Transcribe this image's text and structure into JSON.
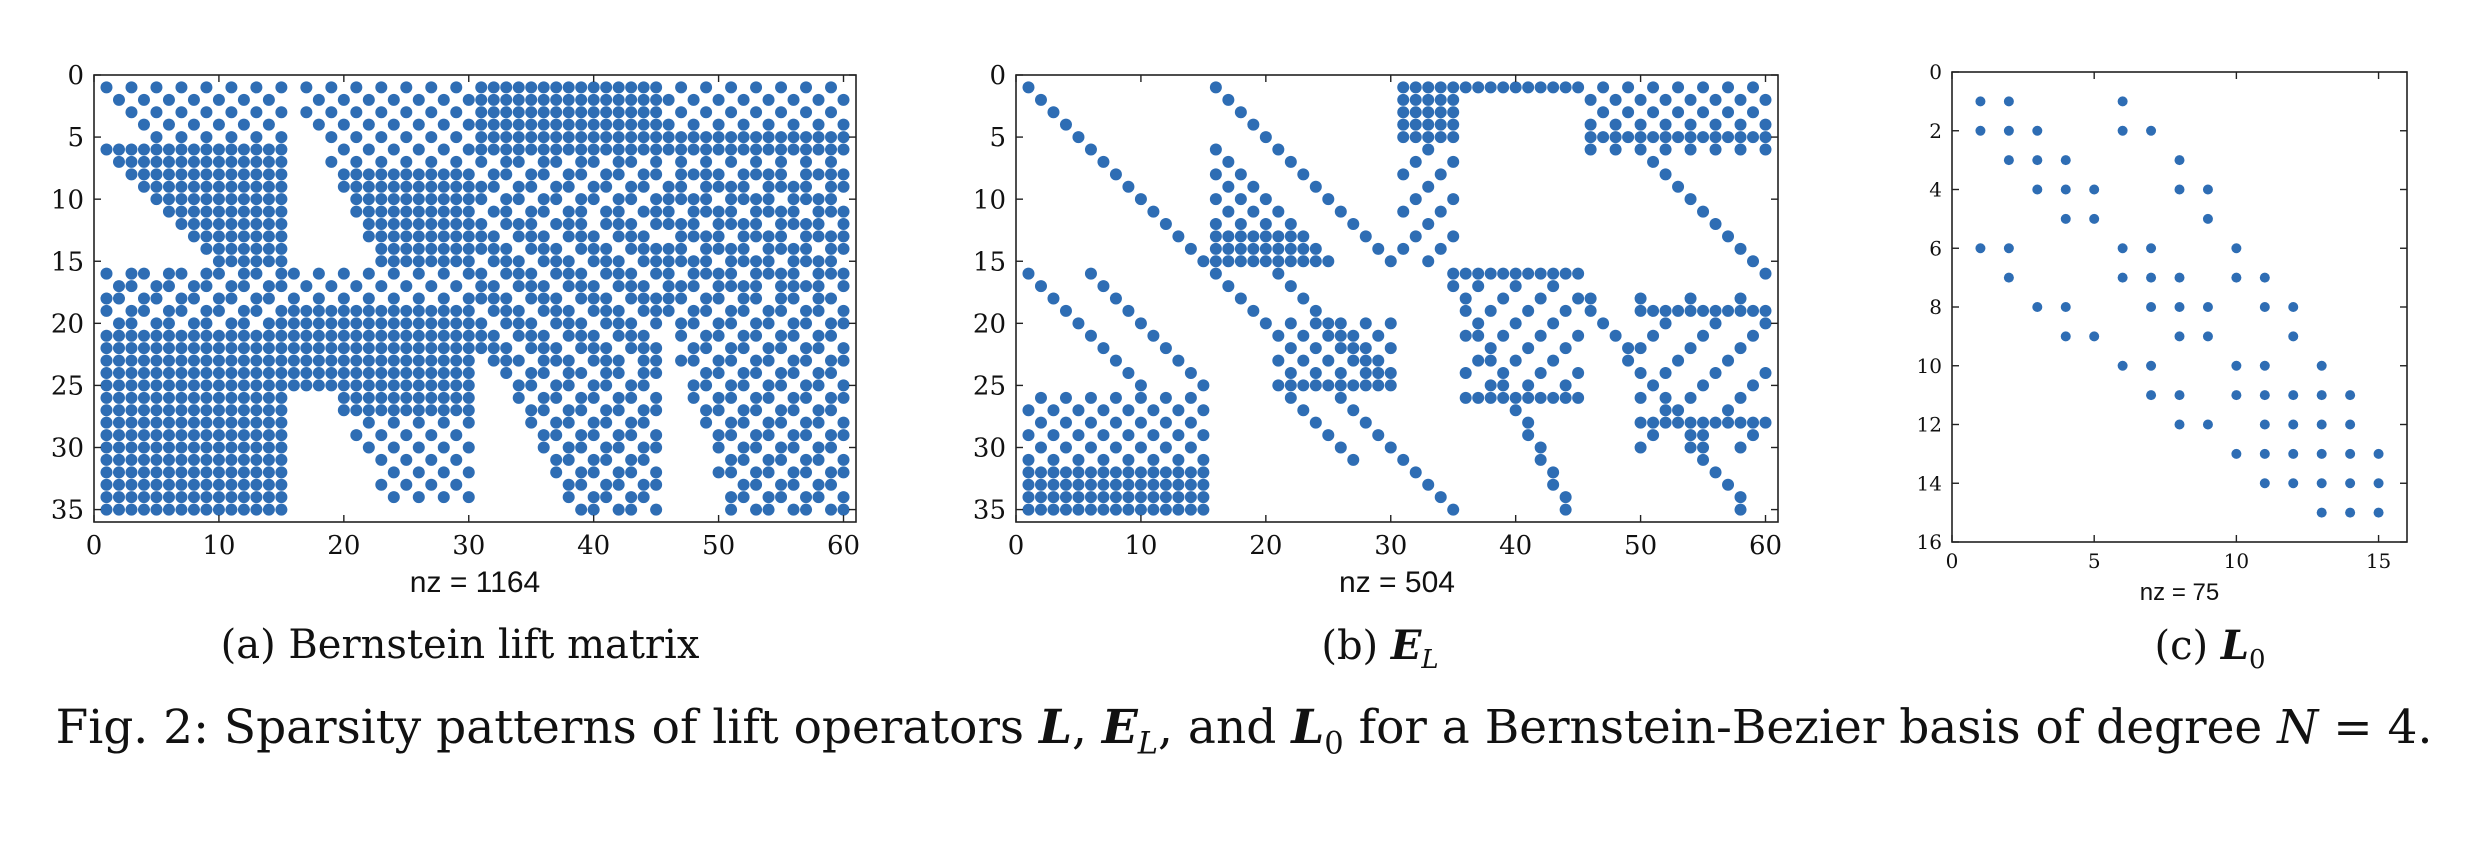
{
  "figure": {
    "caption": {
      "prefix": "Fig. 2: Sparsity patterns of lift operators ",
      "sym1": "L",
      "sep1": ", ",
      "sym2": "E",
      "sym2_sub": "L",
      "sep2": ", and ",
      "sym3": "L",
      "sym3_sub": "0",
      "middle": " for a Bernstein-Bezier basis of degree ",
      "eq_var": "N",
      "eq_rest": " = 4."
    }
  },
  "colors": {
    "marker": "#2e6db4",
    "axis": "#222222",
    "text": "#111111"
  },
  "chart_data": [
    {
      "type": "scatter",
      "subcaption": "(a) Bernstein lift matrix",
      "subcaption_prefix": "(a) ",
      "subcaption_text": "Bernstein lift matrix",
      "xlabel": "nz = 1164",
      "xlim": [
        0,
        61
      ],
      "ylim": [
        0,
        36
      ],
      "y_reversed": true,
      "xticks": [
        0,
        10,
        20,
        30,
        40,
        50,
        60
      ],
      "yticks": [
        0,
        5,
        10,
        15,
        20,
        25,
        30,
        35
      ],
      "grid": false,
      "nz": 1164,
      "pattern": "Bernstein lift matrix sparsity"
    },
    {
      "type": "scatter",
      "subcaption_prefix": "(b) ",
      "subcaption_sym": "E",
      "subcaption_sub": "L",
      "xlabel": "nz = 504",
      "xlim": [
        0,
        61
      ],
      "ylim": [
        0,
        36
      ],
      "y_reversed": true,
      "xticks": [
        0,
        10,
        20,
        30,
        40,
        50,
        60
      ],
      "yticks": [
        0,
        5,
        10,
        15,
        20,
        25,
        30,
        35
      ],
      "grid": false,
      "nz": 504,
      "pattern": "E_L sparsity"
    },
    {
      "type": "scatter",
      "subcaption_prefix": "(c) ",
      "subcaption_sym": "L",
      "subcaption_sub": "0",
      "xlabel": "nz = 75",
      "xlim": [
        0,
        16
      ],
      "ylim": [
        0,
        16
      ],
      "y_reversed": true,
      "xticks": [
        0,
        5,
        10,
        15
      ],
      "yticks": [
        0,
        2,
        4,
        6,
        8,
        10,
        12,
        14,
        16
      ],
      "grid": false,
      "nz": 75,
      "points": [
        [
          1,
          1
        ],
        [
          2,
          1
        ],
        [
          6,
          1
        ],
        [
          1,
          2
        ],
        [
          2,
          2
        ],
        [
          3,
          2
        ],
        [
          6,
          2
        ],
        [
          7,
          2
        ],
        [
          2,
          3
        ],
        [
          3,
          3
        ],
        [
          4,
          3
        ],
        [
          8,
          3
        ],
        [
          3,
          4
        ],
        [
          4,
          4
        ],
        [
          5,
          4
        ],
        [
          8,
          4
        ],
        [
          9,
          4
        ],
        [
          4,
          5
        ],
        [
          5,
          5
        ],
        [
          9,
          5
        ],
        [
          1,
          6
        ],
        [
          2,
          6
        ],
        [
          6,
          6
        ],
        [
          7,
          6
        ],
        [
          10,
          6
        ],
        [
          2,
          7
        ],
        [
          6,
          7
        ],
        [
          7,
          7
        ],
        [
          8,
          7
        ],
        [
          10,
          7
        ],
        [
          11,
          7
        ],
        [
          3,
          8
        ],
        [
          4,
          8
        ],
        [
          7,
          8
        ],
        [
          8,
          8
        ],
        [
          9,
          8
        ],
        [
          11,
          8
        ],
        [
          12,
          8
        ],
        [
          4,
          9
        ],
        [
          5,
          9
        ],
        [
          8,
          9
        ],
        [
          9,
          9
        ],
        [
          12,
          9
        ],
        [
          6,
          10
        ],
        [
          7,
          10
        ],
        [
          10,
          10
        ],
        [
          11,
          10
        ],
        [
          13,
          10
        ],
        [
          7,
          11
        ],
        [
          8,
          11
        ],
        [
          10,
          11
        ],
        [
          11,
          11
        ],
        [
          12,
          11
        ],
        [
          13,
          11
        ],
        [
          14,
          11
        ],
        [
          8,
          12
        ],
        [
          9,
          12
        ],
        [
          11,
          12
        ],
        [
          12,
          12
        ],
        [
          13,
          12
        ],
        [
          14,
          12
        ],
        [
          10,
          13
        ],
        [
          11,
          13
        ],
        [
          13,
          13
        ],
        [
          14,
          13
        ],
        [
          15,
          13
        ],
        [
          11,
          14
        ],
        [
          12,
          14
        ],
        [
          13,
          14
        ],
        [
          14,
          14
        ],
        [
          15,
          14
        ],
        [
          13,
          15
        ],
        [
          14,
          15
        ],
        [
          15,
          15
        ],
        [
          12,
          13
        ]
      ]
    }
  ]
}
